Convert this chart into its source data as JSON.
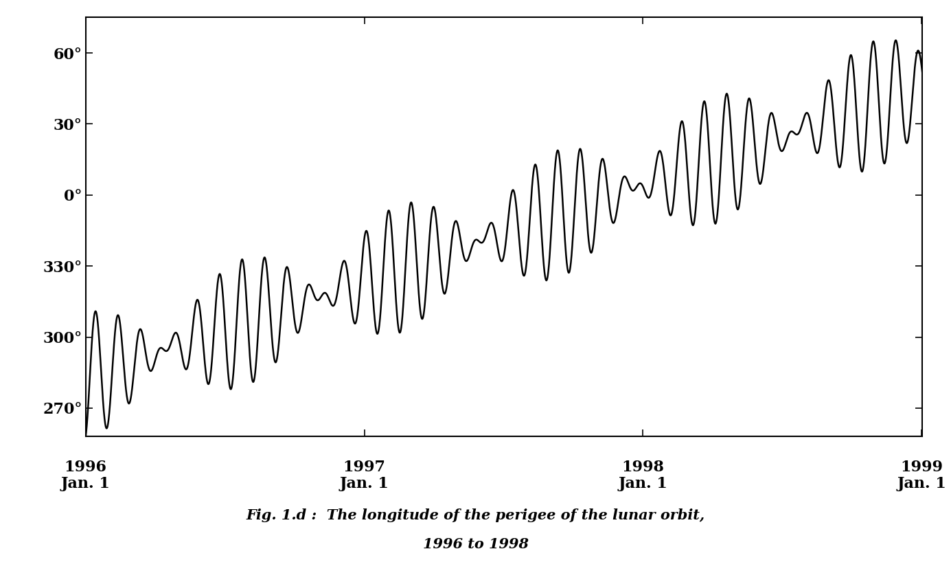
{
  "title_line1": "Fig. 1.d :  The longitude of the perigee of the lunar orbit,",
  "title_line2": "1996 to 1998",
  "ytick_labels": [
    "270°",
    "300°",
    "330°",
    "0°",
    "30°",
    "60°"
  ],
  "ytick_values": [
    270,
    300,
    330,
    360,
    390,
    420
  ],
  "ylim": [
    258,
    435
  ],
  "xlim_days": [
    0,
    1096
  ],
  "xtick_positions": [
    0,
    365,
    730,
    1095
  ],
  "xtick_labels_top": [
    "1996",
    "1997",
    "1998",
    "1999"
  ],
  "xtick_labels_bot": [
    "Jan. 1",
    "Jan. 1",
    "Jan. 1",
    "Jan. 1"
  ],
  "line_color": "#000000",
  "line_width": 1.8,
  "background_color": "#ffffff",
  "linear_rate_per_day": 0.1114,
  "start_angle": 283.0,
  "osc1_amplitude": 13.5,
  "osc1_period_days": 27.55,
  "osc1_phase": -1.2,
  "osc2_amplitude": 13.5,
  "osc2_period_days": 31.8,
  "osc2_phase": -1.2,
  "caption_fontsize": 15,
  "tick_fontsize": 16
}
